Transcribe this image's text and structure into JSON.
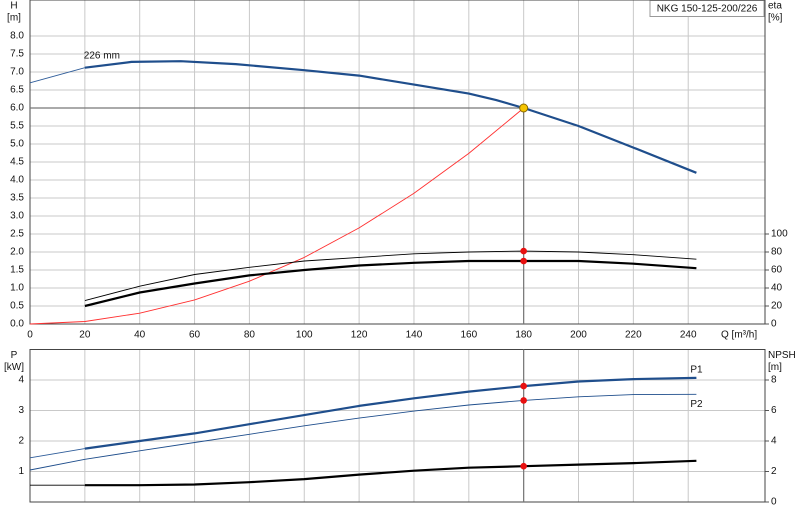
{
  "chart_data": [
    {
      "type": "line",
      "title": "NKG 150-125-200/226",
      "y_label": "H",
      "y_unit": "[m]",
      "y2_label": "eta",
      "y2_unit": "[%]",
      "x_label": "Q [m³/h]",
      "xlim": [
        0,
        268
      ],
      "ylim": [
        0,
        9
      ],
      "y2lim": [
        0,
        360
      ],
      "xticks": [
        0,
        20,
        40,
        60,
        80,
        100,
        120,
        140,
        160,
        180,
        200,
        220,
        240
      ],
      "yticks": [
        {
          "value": 0,
          "label": "0.0"
        },
        0.5,
        {
          "value": 1,
          "label": "1.0"
        },
        1.5,
        {
          "value": 2,
          "label": "2.0"
        },
        2.5,
        {
          "value": 3,
          "label": "3.0"
        },
        3.5,
        {
          "value": 4,
          "label": "4.0"
        },
        4.5,
        {
          "value": 5,
          "label": "5.0"
        },
        5.5,
        {
          "value": 6,
          "label": "6.0"
        },
        6.5,
        {
          "value": 7,
          "label": "7.0"
        },
        7.5,
        {
          "value": 8,
          "label": "8.0"
        }
      ],
      "y2ticks": [
        0,
        20,
        40,
        60,
        80,
        100
      ],
      "grid": true,
      "series": [
        {
          "color": "#2f5d9a",
          "style": "thin",
          "x": [
            0,
            20
          ],
          "values": [
            6.7,
            7.12
          ]
        },
        {
          "label": "226 mm",
          "color": "#1f4e8c",
          "style": "thick",
          "x": [
            20,
            37,
            55,
            75,
            100,
            120,
            140,
            160,
            170,
            180,
            190,
            200,
            220,
            243
          ],
          "values": [
            7.12,
            7.28,
            7.3,
            7.22,
            7.05,
            6.9,
            6.65,
            6.4,
            6.22,
            6.0,
            5.75,
            5.5,
            4.9,
            4.2
          ]
        },
        {
          "color": "#ff3030",
          "style": "thin",
          "x": [
            0,
            20,
            40,
            60,
            80,
            100,
            120,
            140,
            160,
            180
          ],
          "values": [
            0,
            0.07,
            0.3,
            0.67,
            1.19,
            1.85,
            2.67,
            3.63,
            4.74,
            6.0
          ]
        },
        {
          "color": "#000000",
          "style": "thin",
          "axis": "y2",
          "x": [
            20,
            40,
            60,
            80,
            100,
            120,
            140,
            160,
            180,
            200,
            220,
            243
          ],
          "values": [
            26,
            42,
            55,
            63,
            70,
            74,
            78,
            80,
            81,
            80,
            77,
            72
          ]
        },
        {
          "color": "#000000",
          "style": "thick",
          "axis": "y2",
          "x": [
            20,
            40,
            60,
            80,
            100,
            120,
            140,
            160,
            180,
            200,
            220,
            243
          ],
          "values": [
            20,
            35,
            45,
            54,
            60,
            65,
            68,
            70,
            70,
            70,
            67,
            62
          ]
        }
      ],
      "duty_point": {
        "x": 180,
        "y": 6.0,
        "color": "#f5c400"
      },
      "points": [
        {
          "x": 180,
          "y": 81,
          "axis": "y2",
          "color": "#e81010"
        },
        {
          "x": 180,
          "y": 70,
          "axis": "y2",
          "color": "#e81010"
        }
      ]
    },
    {
      "type": "line",
      "y_label": "P",
      "y_unit": "[kW]",
      "y2_label": "NPSH",
      "y2_unit": "[m]",
      "xlim": [
        0,
        268
      ],
      "ylim": [
        0,
        5
      ],
      "y2lim": [
        0,
        10
      ],
      "yticks": [
        1,
        2,
        3,
        4
      ],
      "y2ticks": [
        0,
        2,
        4,
        6,
        8
      ],
      "grid": true,
      "series": [
        {
          "color": "#2f5d9a",
          "style": "thin",
          "x": [
            0,
            20
          ],
          "values": [
            1.45,
            1.75
          ]
        },
        {
          "label": "P1",
          "color": "#1f4e8c",
          "style": "thick",
          "x": [
            20,
            40,
            60,
            80,
            100,
            120,
            140,
            160,
            180,
            200,
            220,
            243
          ],
          "values": [
            1.75,
            2.0,
            2.25,
            2.55,
            2.85,
            3.15,
            3.4,
            3.62,
            3.8,
            3.95,
            4.03,
            4.07
          ]
        },
        {
          "label": "P2",
          "color": "#1f4e8c",
          "style": "thin",
          "x": [
            0,
            20,
            40,
            60,
            80,
            100,
            120,
            140,
            160,
            180,
            200,
            220,
            243
          ],
          "values": [
            1.05,
            1.4,
            1.68,
            1.95,
            2.22,
            2.5,
            2.75,
            2.98,
            3.18,
            3.33,
            3.45,
            3.52,
            3.53
          ]
        },
        {
          "color": "#000000",
          "style": "thin",
          "axis": "y2",
          "x": [
            0,
            20
          ],
          "values": [
            1.1,
            1.1
          ]
        },
        {
          "color": "#000000",
          "style": "thick",
          "axis": "y2",
          "x": [
            20,
            40,
            60,
            80,
            100,
            120,
            140,
            160,
            180,
            200,
            220,
            243
          ],
          "values": [
            1.1,
            1.1,
            1.15,
            1.3,
            1.5,
            1.8,
            2.05,
            2.25,
            2.35,
            2.45,
            2.55,
            2.7
          ]
        }
      ],
      "duty_x": 180,
      "points": [
        {
          "x": 180,
          "y": 3.8,
          "color": "#e81010"
        },
        {
          "x": 180,
          "y": 3.33,
          "color": "#e81010"
        },
        {
          "x": 180,
          "y": 2.35,
          "axis": "y2",
          "color": "#e81010"
        }
      ]
    }
  ]
}
